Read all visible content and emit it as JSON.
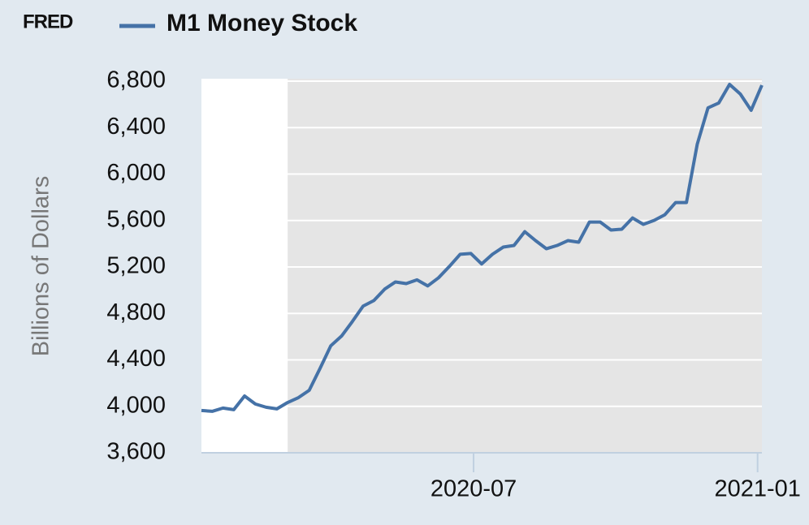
{
  "chart_data": {
    "type": "line",
    "logo": "FRED",
    "title": "M1 Money Stock",
    "ylabel": "Billions of Dollars",
    "series": [
      {
        "name": "M1 Money Stock",
        "color": "#4572a7",
        "values": [
          3964,
          3957,
          3985,
          3971,
          4089,
          4020,
          3992,
          3978,
          4033,
          4075,
          4138,
          4326,
          4521,
          4605,
          4730,
          4863,
          4911,
          5009,
          5071,
          5057,
          5089,
          5037,
          5107,
          5204,
          5309,
          5316,
          5226,
          5309,
          5371,
          5385,
          5504,
          5427,
          5357,
          5385,
          5427,
          5413,
          5587,
          5587,
          5518,
          5525,
          5622,
          5567,
          5601,
          5650,
          5755,
          5755,
          6256,
          6570,
          6612,
          6772,
          6689,
          6549,
          6765
        ]
      }
    ],
    "xlim": [
      0,
      52
    ],
    "xticks": [
      {
        "value": 25.25,
        "label": "2020-07"
      },
      {
        "value": 51.6,
        "label": "2021-01"
      }
    ],
    "recession": [
      8,
      52
    ],
    "ylim": [
      3600,
      6800
    ],
    "yticks": [
      {
        "value": 3600,
        "label": "3,600"
      },
      {
        "value": 4000,
        "label": "4,000"
      },
      {
        "value": 4400,
        "label": "4,400"
      },
      {
        "value": 4800,
        "label": "4,800"
      },
      {
        "value": 5200,
        "label": "5,200"
      },
      {
        "value": 5600,
        "label": "5,600"
      },
      {
        "value": 6000,
        "label": "6,000"
      },
      {
        "value": 6400,
        "label": "6,400"
      },
      {
        "value": 6800,
        "label": "6,800"
      }
    ],
    "grid": true
  }
}
